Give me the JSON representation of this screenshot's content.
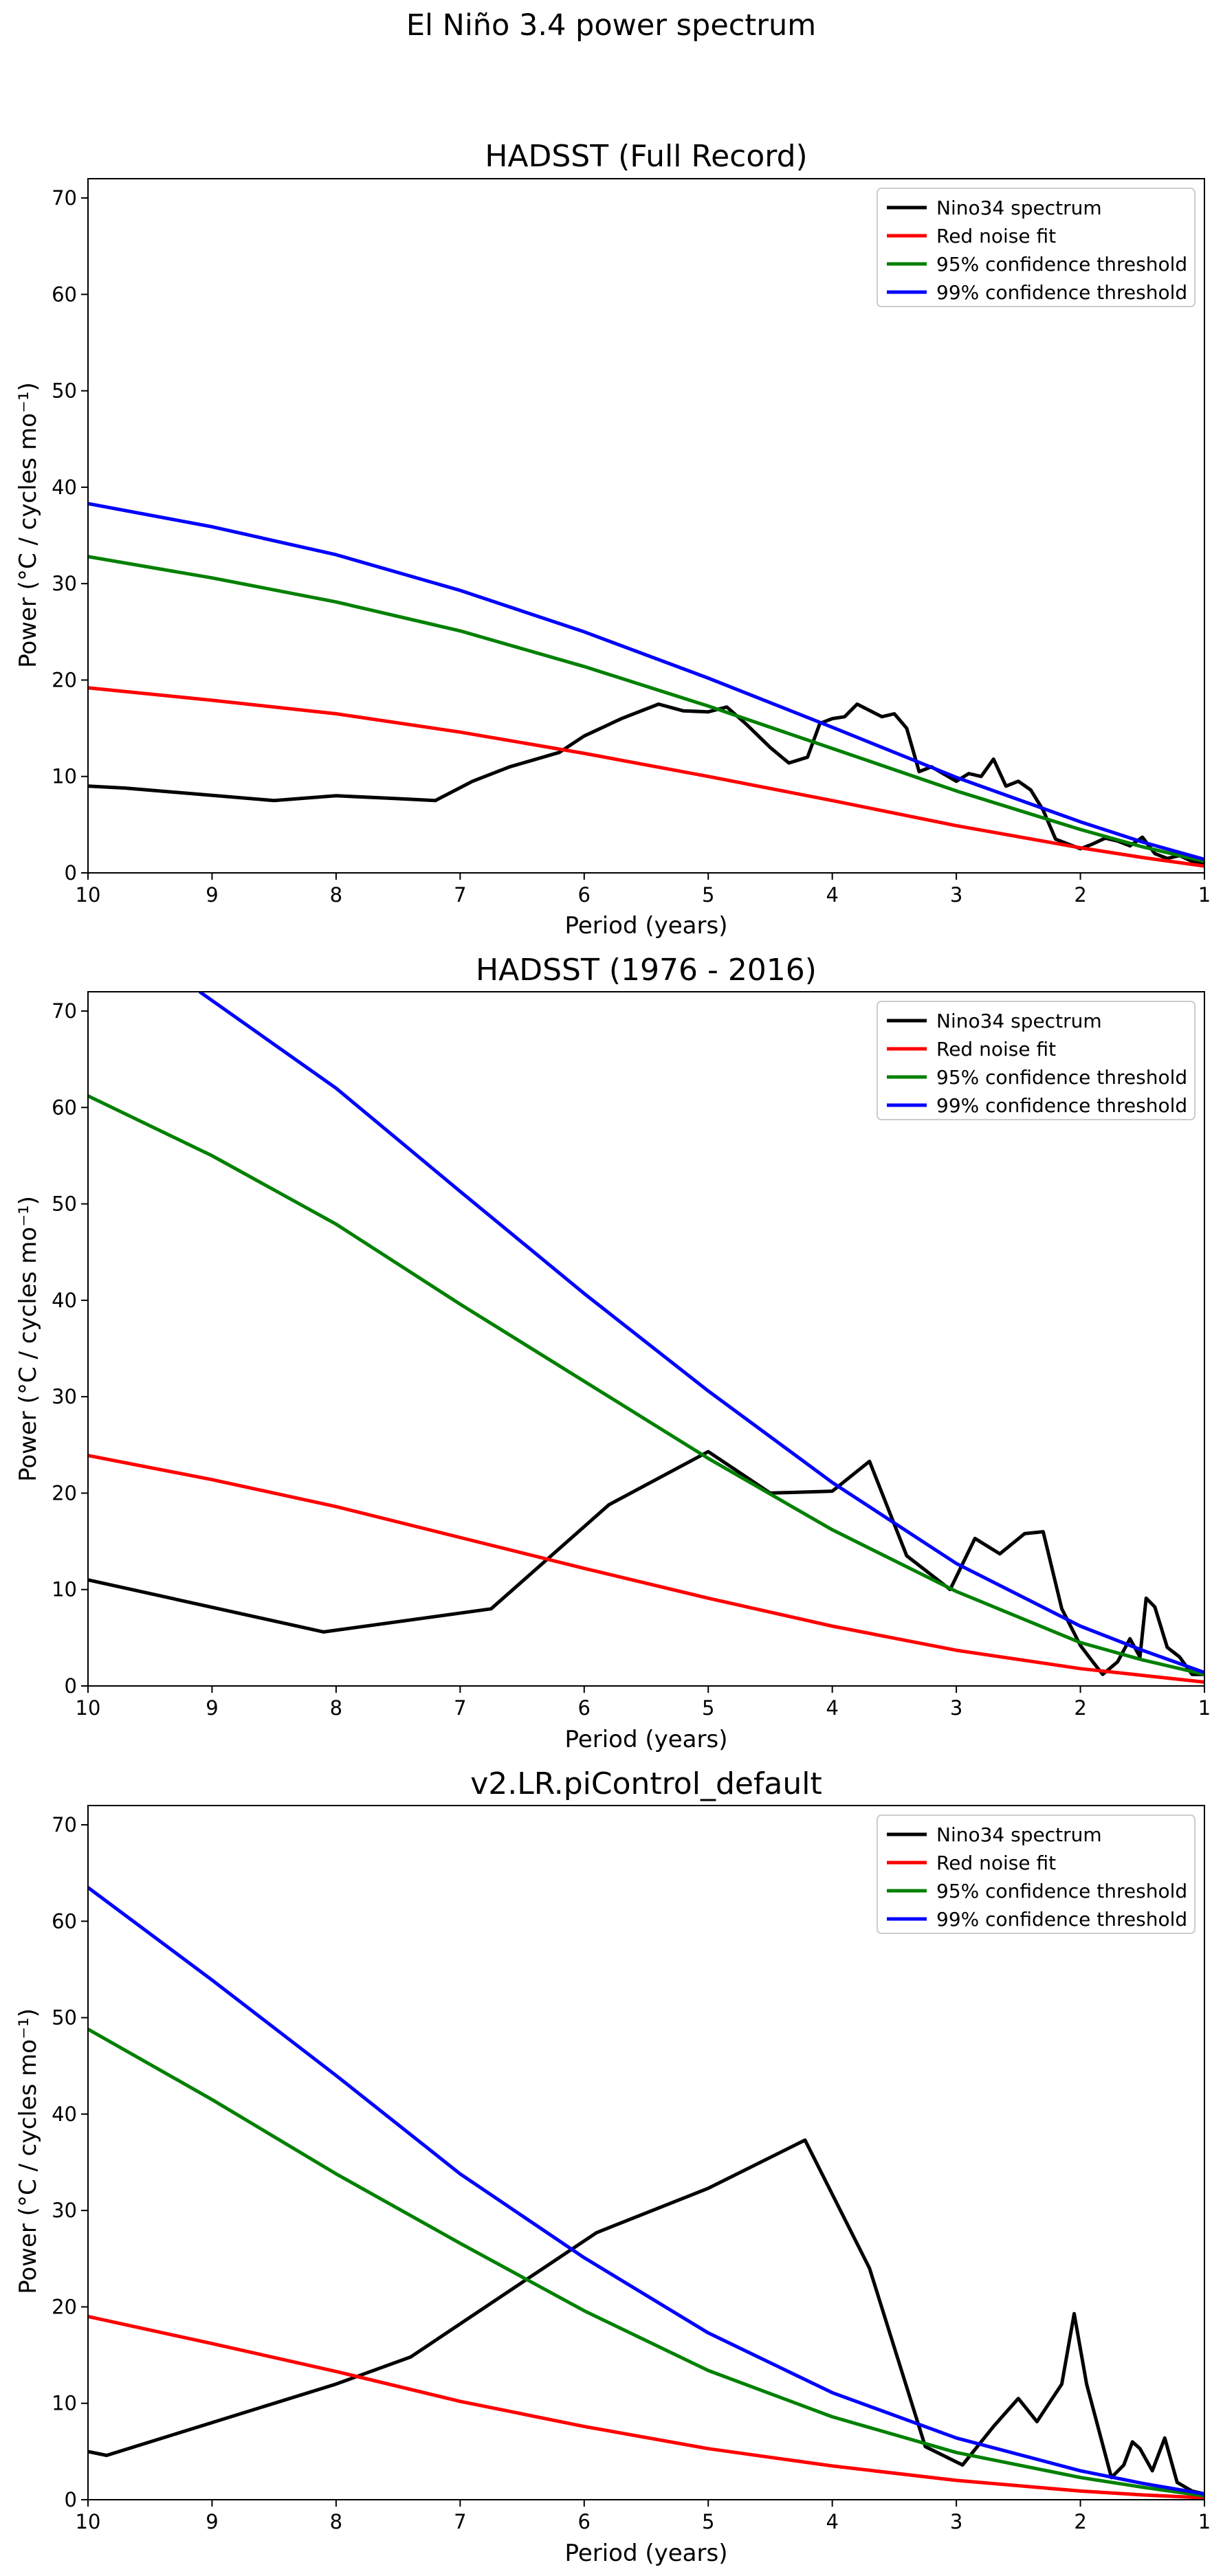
{
  "figure": {
    "suptitle": "El Niño 3.4 power spectrum"
  },
  "chart_data": [
    {
      "type": "line",
      "title": "HADSST (Full Record)",
      "xlabel": "Period (years)",
      "ylabel": "Power (°C / cycles mo⁻¹)",
      "xlim": [
        10,
        1
      ],
      "ylim": [
        0,
        72
      ],
      "xticks": [
        10,
        9,
        8,
        7,
        6,
        5,
        4,
        3,
        2,
        1
      ],
      "yticks": [
        0,
        10,
        20,
        30,
        40,
        50,
        60,
        70
      ],
      "grid": false,
      "legend_position": "top-right",
      "series": [
        {
          "name": "Nino34 spectrum",
          "color": "#000000",
          "x": [
            10,
            9.7,
            8.5,
            8.0,
            7.5,
            7.2,
            6.9,
            6.6,
            6.2,
            6.0,
            5.7,
            5.4,
            5.2,
            5.0,
            4.85,
            4.7,
            4.5,
            4.35,
            4.2,
            4.1,
            4.0,
            3.9,
            3.8,
            3.6,
            3.5,
            3.4,
            3.3,
            3.2,
            3.0,
            2.9,
            2.8,
            2.7,
            2.6,
            2.5,
            2.4,
            2.3,
            2.2,
            2.1,
            2.0,
            1.9,
            1.8,
            1.7,
            1.6,
            1.5,
            1.4,
            1.3,
            1.2,
            1.1,
            1.0
          ],
          "y": [
            9.0,
            8.8,
            7.5,
            8.0,
            7.7,
            7.5,
            9.5,
            11.0,
            12.5,
            14.2,
            16.0,
            17.5,
            16.8,
            16.7,
            17.2,
            15.5,
            13.0,
            11.4,
            12.0,
            15.5,
            16.0,
            16.2,
            17.5,
            16.2,
            16.5,
            15.0,
            10.5,
            11.0,
            9.5,
            10.3,
            10.0,
            11.8,
            9.0,
            9.5,
            8.6,
            6.5,
            3.5,
            3.0,
            2.5,
            3.0,
            3.6,
            3.3,
            2.8,
            3.7,
            2.0,
            1.5,
            1.8,
            1.2,
            1.0
          ]
        },
        {
          "name": "Red noise fit",
          "color": "#ff0000",
          "x": [
            10,
            9,
            8,
            7,
            6,
            5,
            4,
            3,
            2,
            1.5,
            1.0
          ],
          "y": [
            19.2,
            17.9,
            16.5,
            14.6,
            12.4,
            10.0,
            7.5,
            4.9,
            2.6,
            1.6,
            0.7
          ]
        },
        {
          "name": "95% confidence threshold",
          "color": "#008000",
          "x": [
            10,
            9,
            8,
            7,
            6,
            5,
            4,
            3,
            2,
            1.5,
            1.0
          ],
          "y": [
            32.8,
            30.6,
            28.1,
            25.1,
            21.4,
            17.3,
            12.9,
            8.5,
            4.5,
            2.7,
            1.2
          ]
        },
        {
          "name": "99% confidence threshold",
          "color": "#0000ff",
          "x": [
            10,
            9,
            8,
            7,
            6,
            5,
            4,
            3,
            2,
            1.5,
            1.0
          ],
          "y": [
            38.3,
            35.9,
            33.0,
            29.3,
            25.0,
            20.2,
            15.1,
            9.9,
            5.3,
            3.2,
            1.4
          ]
        }
      ]
    },
    {
      "type": "line",
      "title": "HADSST (1976 - 2016)",
      "xlabel": "Period (years)",
      "ylabel": "Power (°C / cycles mo⁻¹)",
      "xlim": [
        10,
        1
      ],
      "ylim": [
        0,
        72
      ],
      "xticks": [
        10,
        9,
        8,
        7,
        6,
        5,
        4,
        3,
        2,
        1
      ],
      "yticks": [
        0,
        10,
        20,
        30,
        40,
        50,
        60,
        70
      ],
      "grid": false,
      "legend_position": "top-right",
      "series": [
        {
          "name": "Nino34 spectrum",
          "color": "#000000",
          "x": [
            10,
            8.1,
            6.75,
            5.8,
            5.0,
            4.5,
            4.0,
            3.7,
            3.4,
            3.05,
            2.85,
            2.65,
            2.45,
            2.3,
            2.15,
            2.0,
            1.9,
            1.82,
            1.7,
            1.6,
            1.52,
            1.47,
            1.4,
            1.3,
            1.2,
            1.1,
            1.0
          ],
          "y": [
            11.0,
            5.6,
            8.0,
            18.8,
            24.3,
            20.0,
            20.2,
            23.3,
            13.5,
            10.0,
            15.3,
            13.7,
            15.8,
            16.0,
            8.0,
            4.2,
            2.5,
            1.2,
            2.5,
            4.9,
            3.0,
            9.1,
            8.2,
            4.0,
            3.0,
            1.2,
            1.2
          ]
        },
        {
          "name": "Red noise fit",
          "color": "#ff0000",
          "x": [
            10,
            9,
            8,
            7,
            6,
            5,
            4,
            3,
            2,
            1.5,
            1.0
          ],
          "y": [
            23.9,
            21.4,
            18.6,
            15.4,
            12.2,
            9.1,
            6.2,
            3.7,
            1.8,
            1.1,
            0.4
          ]
        },
        {
          "name": "95% confidence threshold",
          "color": "#008000",
          "x": [
            10,
            9,
            8,
            7,
            6,
            5,
            4,
            3,
            2,
            1.5,
            1.0
          ],
          "y": [
            61.2,
            55.0,
            47.9,
            39.6,
            31.6,
            23.6,
            16.2,
            9.8,
            4.5,
            2.7,
            1.2
          ]
        },
        {
          "name": "99% confidence threshold",
          "color": "#0000ff",
          "x": [
            9.1,
            8,
            7,
            6,
            5,
            4,
            3,
            2,
            1.5,
            1.0
          ],
          "y": [
            72.0,
            62.0,
            51.3,
            40.7,
            30.6,
            21.1,
            12.7,
            6.2,
            3.7,
            1.4
          ]
        }
      ]
    },
    {
      "type": "line",
      "title": "v2.LR.piControl_default",
      "xlabel": "Period (years)",
      "ylabel": "Power (°C / cycles mo⁻¹)",
      "xlim": [
        10,
        1
      ],
      "ylim": [
        0,
        72
      ],
      "xticks": [
        10,
        9,
        8,
        7,
        6,
        5,
        4,
        3,
        2,
        1
      ],
      "yticks": [
        0,
        10,
        20,
        30,
        40,
        50,
        60,
        70
      ],
      "grid": false,
      "legend_position": "top-right",
      "series": [
        {
          "name": "Nino34 spectrum",
          "color": "#000000",
          "x": [
            10,
            9.85,
            8.0,
            7.4,
            5.9,
            5.0,
            4.22,
            3.7,
            3.25,
            2.95,
            2.7,
            2.5,
            2.35,
            2.15,
            2.05,
            1.95,
            1.75,
            1.65,
            1.58,
            1.52,
            1.42,
            1.32,
            1.22,
            1.1,
            1.0
          ],
          "y": [
            5.0,
            4.6,
            12.0,
            14.8,
            27.7,
            32.3,
            37.3,
            24.0,
            5.5,
            3.6,
            7.6,
            10.5,
            8.1,
            12.0,
            19.3,
            12.0,
            2.3,
            3.6,
            6.0,
            5.3,
            3.0,
            6.4,
            1.8,
            0.9,
            0.6
          ]
        },
        {
          "name": "Red noise fit",
          "color": "#ff0000",
          "x": [
            10,
            9,
            8,
            7,
            6,
            5,
            4,
            3,
            2,
            1.5,
            1.0
          ],
          "y": [
            19.0,
            16.2,
            13.3,
            10.2,
            7.6,
            5.3,
            3.5,
            2.0,
            0.9,
            0.5,
            0.2
          ]
        },
        {
          "name": "95% confidence threshold",
          "color": "#008000",
          "x": [
            10,
            9,
            8,
            7,
            6,
            5,
            4,
            3,
            2,
            1.5,
            1.0
          ],
          "y": [
            48.8,
            41.5,
            33.8,
            26.6,
            19.6,
            13.4,
            8.6,
            4.9,
            2.3,
            1.3,
            0.4
          ]
        },
        {
          "name": "99% confidence threshold",
          "color": "#0000ff",
          "x": [
            10,
            9,
            8,
            7,
            6,
            5,
            4,
            3,
            2,
            1.5,
            1.0
          ],
          "y": [
            63.5,
            53.9,
            44.0,
            33.8,
            25.1,
            17.3,
            11.1,
            6.4,
            3.0,
            1.7,
            0.6
          ]
        }
      ]
    }
  ]
}
